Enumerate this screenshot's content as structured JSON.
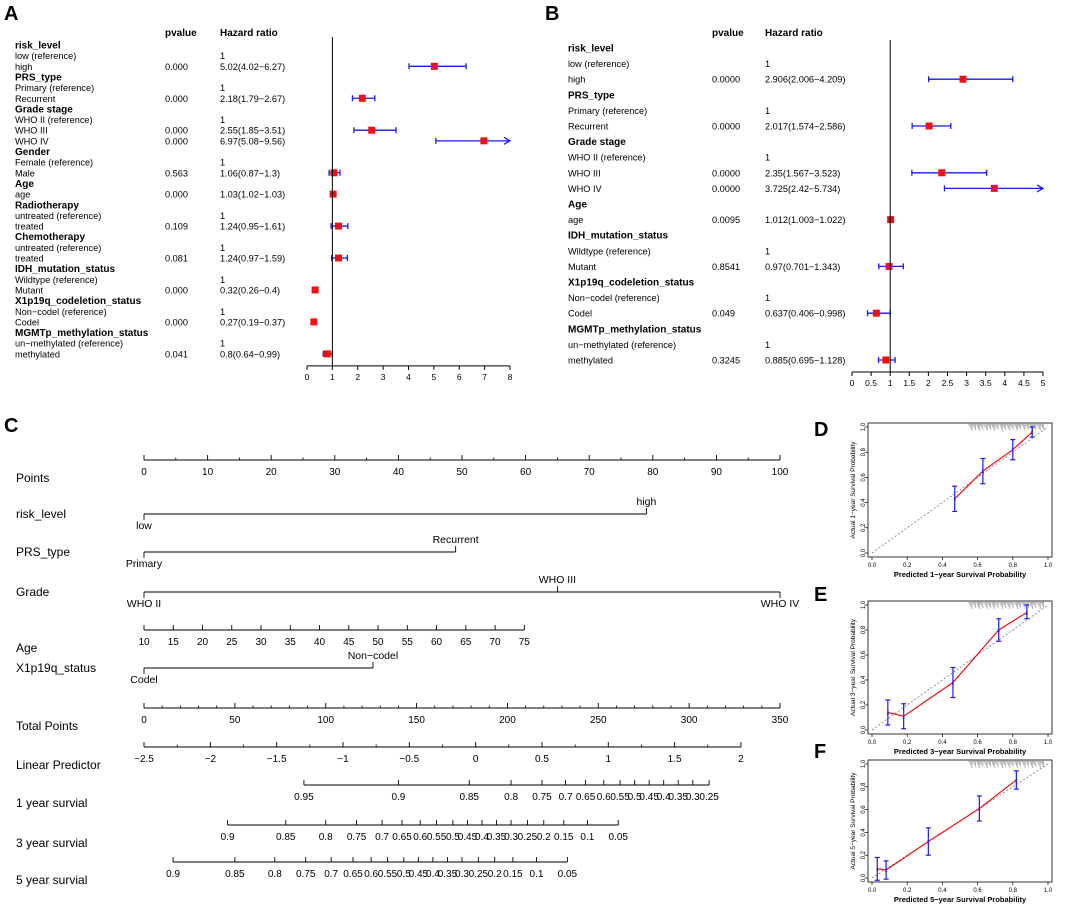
{
  "panel_letters": [
    "A",
    "B",
    "C",
    "D",
    "E",
    "F"
  ],
  "colors": {
    "ci_line": "#1a1aee",
    "point": "#ee1111",
    "axis": "#000000",
    "calib_line": "#ee1111",
    "diag": "#777777",
    "calib_err": "#1a1aee"
  },
  "chart_data": [
    {
      "id": "A",
      "type": "forest",
      "col_headers": {
        "pvalue": "pvalue",
        "hr": "Hazard ratio"
      },
      "xlim": [
        0,
        8
      ],
      "xticks": [
        0,
        1,
        2,
        3,
        4,
        5,
        6,
        7,
        8
      ],
      "ref_line": 1,
      "rows": [
        {
          "label": "risk_level",
          "header": true
        },
        {
          "label": "low (reference)",
          "hr_text": "1"
        },
        {
          "label": "high",
          "p": "0.000",
          "hr_text": "5.02(4.02−6.27)",
          "hr": 5.02,
          "lo": 4.02,
          "hi": 6.27
        },
        {
          "label": "PRS_type",
          "header": true
        },
        {
          "label": "Primary (reference)",
          "hr_text": "1"
        },
        {
          "label": "Recurrent",
          "p": "0.000",
          "hr_text": "2.18(1.79−2.67)",
          "hr": 2.18,
          "lo": 1.79,
          "hi": 2.67
        },
        {
          "label": "Grade stage",
          "header": true
        },
        {
          "label": "WHO II (reference)",
          "hr_text": "1"
        },
        {
          "label": "WHO III",
          "p": "0.000",
          "hr_text": "2.55(1.85−3.51)",
          "hr": 2.55,
          "lo": 1.85,
          "hi": 3.51
        },
        {
          "label": "WHO IV",
          "p": "0.000",
          "hr_text": "6.97(5.08−9.56)",
          "hr": 6.97,
          "lo": 5.08,
          "hi": 9.56,
          "arrow": true
        },
        {
          "label": "Gender",
          "header": true
        },
        {
          "label": "Female (reference)",
          "hr_text": "1"
        },
        {
          "label": "Male",
          "p": "0.563",
          "hr_text": "1.06(0.87−1.3)",
          "hr": 1.06,
          "lo": 0.87,
          "hi": 1.3
        },
        {
          "label": "Age",
          "header": true
        },
        {
          "label": "age",
          "p": "0.000",
          "hr_text": "1.03(1.02−1.03)",
          "hr": 1.03,
          "lo": 1.02,
          "hi": 1.03
        },
        {
          "label": "Radiotherapy",
          "header": true
        },
        {
          "label": "untreated (reference)",
          "hr_text": "1"
        },
        {
          "label": "treated",
          "p": "0.109",
          "hr_text": "1.24(0.95−1.61)",
          "hr": 1.24,
          "lo": 0.95,
          "hi": 1.61
        },
        {
          "label": "Chemotherapy",
          "header": true
        },
        {
          "label": "untreated (reference)",
          "hr_text": "1"
        },
        {
          "label": "treated",
          "p": "0.081",
          "hr_text": "1.24(0.97−1.59)",
          "hr": 1.24,
          "lo": 0.97,
          "hi": 1.59
        },
        {
          "label": "IDH_mutation_status",
          "header": true
        },
        {
          "label": "Wildtype (reference)",
          "hr_text": "1"
        },
        {
          "label": "Mutant",
          "p": "0.000",
          "hr_text": "0.32(0.26−0.4)",
          "hr": 0.32,
          "lo": 0.26,
          "hi": 0.4
        },
        {
          "label": "X1p19q_codeletion_status",
          "header": true
        },
        {
          "label": "Non−codel (reference)",
          "hr_text": "1"
        },
        {
          "label": "Codel",
          "p": "0.000",
          "hr_text": "0.27(0.19−0.37)",
          "hr": 0.27,
          "lo": 0.19,
          "hi": 0.37
        },
        {
          "label": "MGMTp_methylation_status",
          "header": true
        },
        {
          "label": "un−methylated (reference)",
          "hr_text": "1"
        },
        {
          "label": "methylated",
          "p": "0.041",
          "hr_text": "0.8(0.64−0.99)",
          "hr": 0.8,
          "lo": 0.64,
          "hi": 0.99
        }
      ]
    },
    {
      "id": "B",
      "type": "forest",
      "col_headers": {
        "pvalue": "pvalue",
        "hr": "Hazard ratio"
      },
      "xlim": [
        0,
        5
      ],
      "xticks": [
        0,
        0.5,
        1,
        1.5,
        2,
        2.5,
        3,
        3.5,
        4,
        4.5,
        5
      ],
      "ref_line": 1,
      "rows": [
        {
          "label": "risk_level",
          "header": true
        },
        {
          "label": "low (reference)",
          "hr_text": "1"
        },
        {
          "label": "high",
          "p": "0.0000",
          "hr_text": "2.906(2.006−4.209)",
          "hr": 2.906,
          "lo": 2.006,
          "hi": 4.209
        },
        {
          "label": "PRS_type",
          "header": true
        },
        {
          "label": "Primary (reference)",
          "hr_text": "1"
        },
        {
          "label": "Recurrent",
          "p": "0.0000",
          "hr_text": "2.017(1.574−2.586)",
          "hr": 2.017,
          "lo": 1.574,
          "hi": 2.586
        },
        {
          "label": "Grade stage",
          "header": true
        },
        {
          "label": "WHO II (reference)",
          "hr_text": "1"
        },
        {
          "label": "WHO III",
          "p": "0.0000",
          "hr_text": "2.35(1.567−3.523)",
          "hr": 2.35,
          "lo": 1.567,
          "hi": 3.523
        },
        {
          "label": "WHO IV",
          "p": "0.0000",
          "hr_text": "3.725(2.42−5.734)",
          "hr": 3.725,
          "lo": 2.42,
          "hi": 5.734,
          "arrow": true
        },
        {
          "label": "Age",
          "header": true
        },
        {
          "label": "age",
          "p": "0.0095",
          "hr_text": "1.012(1.003−1.022)",
          "hr": 1.012,
          "lo": 1.003,
          "hi": 1.022
        },
        {
          "label": "IDH_mutation_status",
          "header": true
        },
        {
          "label": "Wildtype (reference)",
          "hr_text": "1"
        },
        {
          "label": "Mutant",
          "p": "0.8541",
          "hr_text": "0.97(0.701−1.343)",
          "hr": 0.97,
          "lo": 0.701,
          "hi": 1.343
        },
        {
          "label": "X1p19q_codeletion_status",
          "header": true
        },
        {
          "label": "Non−codel (reference)",
          "hr_text": "1"
        },
        {
          "label": "Codel",
          "p": "0.049",
          "hr_text": "0.637(0.406−0.998)",
          "hr": 0.637,
          "lo": 0.406,
          "hi": 0.998
        },
        {
          "label": "MGMTp_methylation_status",
          "header": true
        },
        {
          "label": "un−methylated (reference)",
          "hr_text": "1"
        },
        {
          "label": "methylated",
          "p": "0.3245",
          "hr_text": "0.885(0.695−1.128)",
          "hr": 0.885,
          "lo": 0.695,
          "hi": 1.128
        }
      ]
    },
    {
      "id": "C",
      "type": "nomogram",
      "rows": [
        {
          "label": "Points",
          "min": 0,
          "max": 100,
          "ticks": [
            {
              "v": 0,
              "t": "0"
            },
            {
              "v": 10,
              "t": "10"
            },
            {
              "v": 20,
              "t": "20"
            },
            {
              "v": 30,
              "t": "30"
            },
            {
              "v": 40,
              "t": "40"
            },
            {
              "v": 50,
              "t": "50"
            },
            {
              "v": 60,
              "t": "60"
            },
            {
              "v": 70,
              "t": "70"
            },
            {
              "v": 80,
              "t": "80"
            },
            {
              "v": 90,
              "t": "90"
            },
            {
              "v": 100,
              "t": "100"
            }
          ],
          "minor": 5
        },
        {
          "label": "risk_level",
          "min": 0,
          "max": 100,
          "bracket": true,
          "ticks": [
            {
              "v": 0,
              "t": "low",
              "pos": "below"
            },
            {
              "v": 79,
              "t": "high",
              "pos": "above"
            }
          ]
        },
        {
          "label": "PRS_type",
          "min": 0,
          "max": 100,
          "bracket": true,
          "ticks": [
            {
              "v": 0,
              "t": "Primary",
              "pos": "below"
            },
            {
              "v": 49,
              "t": "Recurrent",
              "pos": "above"
            }
          ]
        },
        {
          "label": "Grade",
          "min": 0,
          "max": 100,
          "bracket": true,
          "ticks": [
            {
              "v": 0,
              "t": "WHO II",
              "pos": "below"
            },
            {
              "v": 65,
              "t": "WHO III",
              "pos": "above"
            },
            {
              "v": 100,
              "t": "WHO IV",
              "pos": "below"
            }
          ]
        },
        {
          "label": "Age",
          "min": 0,
          "max": 100,
          "ticks": [
            {
              "v": 0,
              "t": "10"
            },
            {
              "v": 4.6,
              "t": "15"
            },
            {
              "v": 9.2,
              "t": "20"
            },
            {
              "v": 13.8,
              "t": "25"
            },
            {
              "v": 18.4,
              "t": "30"
            },
            {
              "v": 23.0,
              "t": "35"
            },
            {
              "v": 27.6,
              "t": "40"
            },
            {
              "v": 32.2,
              "t": "45"
            },
            {
              "v": 36.8,
              "t": "50"
            },
            {
              "v": 41.4,
              "t": "55"
            },
            {
              "v": 46.0,
              "t": "60"
            },
            {
              "v": 50.6,
              "t": "65"
            },
            {
              "v": 55.2,
              "t": "70"
            },
            {
              "v": 59.8,
              "t": "75"
            }
          ]
        },
        {
          "label": "X1p19q_status",
          "min": 0,
          "max": 100,
          "bracket": true,
          "ticks": [
            {
              "v": 0,
              "t": "Codel",
              "pos": "below"
            },
            {
              "v": 36,
              "t": "Non−codel",
              "pos": "above"
            }
          ]
        },
        {
          "label": "Total Points",
          "min": 0,
          "max": 350,
          "ticks": [
            {
              "v": 0,
              "t": "0"
            },
            {
              "v": 50,
              "t": "50"
            },
            {
              "v": 100,
              "t": "100"
            },
            {
              "v": 150,
              "t": "150"
            },
            {
              "v": 200,
              "t": "200"
            },
            {
              "v": 250,
              "t": "250"
            },
            {
              "v": 300,
              "t": "300"
            },
            {
              "v": 350,
              "t": "350"
            }
          ],
          "minor": 10
        },
        {
          "label": "Linear Predictor",
          "min": 0,
          "max": 350,
          "ticks": [
            {
              "v": 0,
              "t": "−2.5"
            },
            {
              "v": 36.5,
              "t": "−2"
            },
            {
              "v": 73,
              "t": "−1.5"
            },
            {
              "v": 109.5,
              "t": "−1"
            },
            {
              "v": 146,
              "t": "−0.5"
            },
            {
              "v": 182.5,
              "t": "0"
            },
            {
              "v": 219,
              "t": "0.5"
            },
            {
              "v": 255.5,
              "t": "1"
            },
            {
              "v": 292,
              "t": "1.5"
            },
            {
              "v": 328.5,
              "t": "2"
            }
          ],
          "minor_half": true
        },
        {
          "label": "1 year survial",
          "min": 0,
          "max": 350,
          "ticks": [
            {
              "v": 88,
              "t": "0.95"
            },
            {
              "v": 140,
              "t": "0.9"
            },
            {
              "v": 179,
              "t": "0.85"
            },
            {
              "v": 202,
              "t": "0.8"
            },
            {
              "v": 219,
              "t": "0.75"
            },
            {
              "v": 232,
              "t": "0.7"
            },
            {
              "v": 243,
              "t": "0.65"
            },
            {
              "v": 253,
              "t": "0.6"
            },
            {
              "v": 262,
              "t": "0.55"
            },
            {
              "v": 270,
              "t": "0.5"
            },
            {
              "v": 278,
              "t": "0.45"
            },
            {
              "v": 286,
              "t": "0.4"
            },
            {
              "v": 294,
              "t": "0.35"
            },
            {
              "v": 302,
              "t": "0.3"
            },
            {
              "v": 311,
              "t": "0.25"
            }
          ]
        },
        {
          "label": "3 year survial",
          "min": 0,
          "max": 350,
          "ticks": [
            {
              "v": 46,
              "t": "0.9"
            },
            {
              "v": 78,
              "t": "0.85"
            },
            {
              "v": 100,
              "t": "0.8"
            },
            {
              "v": 117,
              "t": "0.75"
            },
            {
              "v": 131,
              "t": "0.7"
            },
            {
              "v": 142,
              "t": "0.65"
            },
            {
              "v": 152,
              "t": "0.6"
            },
            {
              "v": 161,
              "t": "0.55"
            },
            {
              "v": 170,
              "t": "0.5"
            },
            {
              "v": 178,
              "t": "0.45"
            },
            {
              "v": 186,
              "t": "0.4"
            },
            {
              "v": 194,
              "t": "0.35"
            },
            {
              "v": 202,
              "t": "0.3"
            },
            {
              "v": 211,
              "t": "0.25"
            },
            {
              "v": 220,
              "t": "0.2"
            },
            {
              "v": 231,
              "t": "0.15"
            },
            {
              "v": 244,
              "t": "0.1"
            },
            {
              "v": 261,
              "t": "0.05"
            }
          ]
        },
        {
          "label": "5 year survial",
          "min": 0,
          "max": 350,
          "ticks": [
            {
              "v": 16,
              "t": "0.9"
            },
            {
              "v": 50,
              "t": "0.85"
            },
            {
              "v": 72,
              "t": "0.8"
            },
            {
              "v": 89,
              "t": "0.75"
            },
            {
              "v": 103,
              "t": "0.7"
            },
            {
              "v": 115,
              "t": "0.65"
            },
            {
              "v": 125,
              "t": "0.6"
            },
            {
              "v": 134,
              "t": "0.55"
            },
            {
              "v": 143,
              "t": "0.5"
            },
            {
              "v": 151,
              "t": "0.45"
            },
            {
              "v": 159,
              "t": "0.4"
            },
            {
              "v": 167,
              "t": "0.35"
            },
            {
              "v": 175,
              "t": "0.3"
            },
            {
              "v": 184,
              "t": "0.25"
            },
            {
              "v": 193,
              "t": "0.2"
            },
            {
              "v": 203,
              "t": "0.15"
            },
            {
              "v": 216,
              "t": "0.1"
            },
            {
              "v": 233,
              "t": "0.05"
            }
          ]
        }
      ]
    },
    {
      "id": "D",
      "type": "line",
      "xlabel": "Predicted 1−year Survival Probability",
      "ylabel": "Actual 1−year Survival Probability",
      "xlim": [
        0,
        1
      ],
      "ylim": [
        0,
        1
      ],
      "ticks": [
        "0.0",
        "0.2",
        "0.4",
        "0.6",
        "0.8",
        "1.0"
      ],
      "points": [
        {
          "x": 0.47,
          "y": 0.43,
          "lo": 0.33,
          "hi": 0.53
        },
        {
          "x": 0.63,
          "y": 0.65,
          "lo": 0.55,
          "hi": 0.75
        },
        {
          "x": 0.8,
          "y": 0.82,
          "lo": 0.74,
          "hi": 0.9
        },
        {
          "x": 0.91,
          "y": 0.96,
          "lo": 0.92,
          "hi": 1.0
        }
      ]
    },
    {
      "id": "E",
      "type": "line",
      "xlabel": "Predicted 3−year Survival Probability",
      "ylabel": "Actual 3−year Survival Probability",
      "xlim": [
        0,
        1
      ],
      "ylim": [
        0,
        1
      ],
      "ticks": [
        "0.0",
        "0.2",
        "0.4",
        "0.6",
        "0.8",
        "1.0"
      ],
      "points": [
        {
          "x": 0.09,
          "y": 0.14,
          "lo": 0.04,
          "hi": 0.24
        },
        {
          "x": 0.18,
          "y": 0.11,
          "lo": 0.01,
          "hi": 0.21
        },
        {
          "x": 0.46,
          "y": 0.38,
          "lo": 0.26,
          "hi": 0.5
        },
        {
          "x": 0.72,
          "y": 0.8,
          "lo": 0.71,
          "hi": 0.89
        },
        {
          "x": 0.88,
          "y": 0.94,
          "lo": 0.89,
          "hi": 1.0
        }
      ]
    },
    {
      "id": "F",
      "type": "line",
      "xlabel": "Predicted 5−year Survival Probability",
      "ylabel": "Actual 5−year Survival Probability",
      "xlim": [
        0,
        1
      ],
      "ylim": [
        0,
        1
      ],
      "ticks": [
        "0.0",
        "0.2",
        "0.4",
        "0.6",
        "0.8",
        "1.0"
      ],
      "points": [
        {
          "x": 0.03,
          "y": 0.08,
          "lo": -0.02,
          "hi": 0.18
        },
        {
          "x": 0.08,
          "y": 0.07,
          "lo": -0.01,
          "hi": 0.15
        },
        {
          "x": 0.32,
          "y": 0.32,
          "lo": 0.2,
          "hi": 0.44
        },
        {
          "x": 0.61,
          "y": 0.61,
          "lo": 0.5,
          "hi": 0.72
        },
        {
          "x": 0.82,
          "y": 0.86,
          "lo": 0.78,
          "hi": 0.94
        }
      ]
    }
  ]
}
